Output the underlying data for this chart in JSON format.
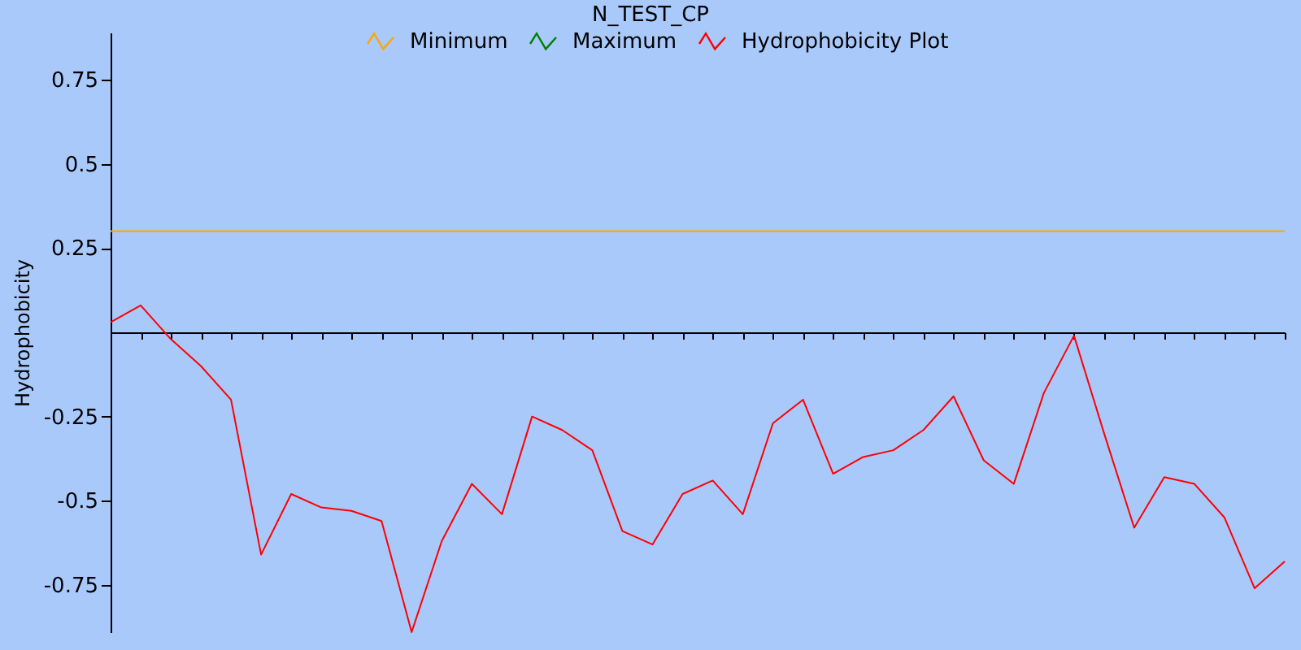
{
  "chart_data": {
    "type": "line",
    "title": "N_TEST_CP",
    "ylabel": "Hydrophobicity",
    "categories": [
      null,
      null,
      null,
      null,
      null,
      null,
      null,
      null,
      null,
      null,
      null,
      null,
      null,
      null,
      null,
      null,
      null,
      null,
      null,
      null,
      null,
      null,
      null,
      null,
      null,
      null,
      null,
      null,
      null,
      null,
      null,
      null,
      null,
      null,
      null,
      null,
      null,
      null,
      null,
      null
    ],
    "series": [
      {
        "name": "Minimum",
        "color": "#ffa500",
        "values": [
          0.3,
          0.3,
          0.3,
          0.3,
          0.3,
          0.3,
          0.3,
          0.3,
          0.3,
          0.3,
          0.3,
          0.3,
          0.3,
          0.3,
          0.3,
          0.3,
          0.3,
          0.3,
          0.3,
          0.3,
          0.3,
          0.3,
          0.3,
          0.3,
          0.3,
          0.3,
          0.3,
          0.3,
          0.3,
          0.3,
          0.3,
          0.3,
          0.3,
          0.3,
          0.3,
          0.3,
          0.3,
          0.3,
          0.3,
          0.3
        ]
      },
      {
        "name": "Maximum",
        "color": "#008000",
        "values": [
          null,
          null,
          null,
          null,
          null,
          null,
          null,
          null,
          null,
          null,
          null,
          null,
          null,
          null,
          null,
          null,
          null,
          null,
          null,
          null,
          null,
          null,
          null,
          null,
          null,
          null,
          null,
          null,
          null,
          null,
          null,
          null,
          null,
          null,
          null,
          null,
          null,
          null,
          null,
          null
        ]
      },
      {
        "name": "Hydrophobicity Plot",
        "color": "#ff0000",
        "values": [
          0.03,
          0.08,
          -0.02,
          -0.1,
          -0.2,
          -0.66,
          -0.48,
          -0.52,
          -0.53,
          -0.56,
          -0.89,
          -0.62,
          -0.45,
          -0.54,
          -0.25,
          -0.29,
          -0.35,
          -0.59,
          -0.63,
          -0.48,
          -0.44,
          -0.54,
          -0.27,
          -0.2,
          -0.42,
          -0.37,
          -0.35,
          -0.29,
          -0.19,
          -0.38,
          -0.45,
          -0.18,
          -0.01,
          -0.3,
          -0.58,
          -0.43,
          -0.45,
          -0.55,
          -0.76,
          -0.68
        ]
      }
    ],
    "ylim": [
      -0.89,
      0.89
    ],
    "yticks": [
      -0.75,
      -0.5,
      -0.25,
      0.25,
      0.5,
      0.75
    ],
    "tick_labels": "y",
    "legend": "top",
    "grid": false
  }
}
